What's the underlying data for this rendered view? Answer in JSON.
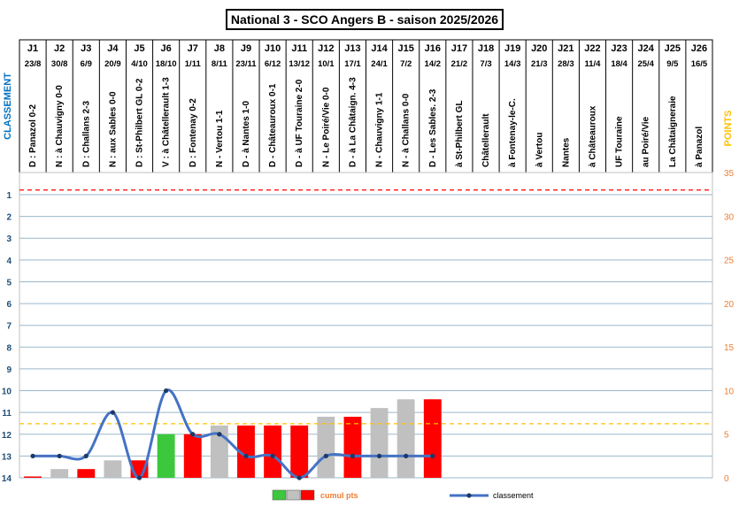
{
  "title": "National 3 - SCO Angers B - saison 2025/2026",
  "chart_data": {
    "type": "bar",
    "title": "National 3 - SCO Angers B - saison 2025/2026",
    "rounds": [
      "J1",
      "J2",
      "J3",
      "J4",
      "J5",
      "J6",
      "J7",
      "J8",
      "J9",
      "J10",
      "J11",
      "J12",
      "J13",
      "J14",
      "J15",
      "J16",
      "J17",
      "J18",
      "J19",
      "J20",
      "J21",
      "J22",
      "J23",
      "J24",
      "J25",
      "J26"
    ],
    "dates": [
      "23/8",
      "30/8",
      "6/9",
      "20/9",
      "4/10",
      "18/10",
      "1/11",
      "8/11",
      "23/11",
      "6/12",
      "13/12",
      "10/1",
      "17/1",
      "24/1",
      "7/2",
      "14/2",
      "21/2",
      "7/3",
      "14/3",
      "21/3",
      "28/3",
      "11/4",
      "18/4",
      "25/4",
      "9/5",
      "16/5"
    ],
    "matches": [
      "D : Panazol 0-2",
      "N : à Chauvigny 0-0",
      "D : Challans 2-3",
      "N : aux Sables 0-0",
      "D : St-Philbert GL 0-2",
      "V : à Châtellerault 1-3",
      "D : Fontenay 0-2",
      "N - Vertou 1-1",
      "D - à Nantes 1-0",
      "D - Châteauroux 0-1",
      "D - à UF Touraine 2-0",
      "N - Le Poiré/Vie 0-0",
      "D - à La Châtaign. 4-3",
      "N - Chauvigny 1-1",
      "N - à Challans 0-0",
      "D - Les Sables. 2-3",
      "à St-Philbert GL",
      "Châtellerault",
      "à Fontenay-le-C.",
      "à Vertou",
      "Nantes",
      "à Châteauroux",
      "UF Touraine",
      "au Poiré/Vie",
      "La Châtaigneraie",
      "à Panazol"
    ],
    "left_axis": {
      "label": "CLASSEMENT",
      "ticks": [
        "1",
        "2",
        "3",
        "4",
        "5",
        "6",
        "7",
        "8",
        "9",
        "10",
        "11",
        "12",
        "13",
        "14"
      ],
      "range": [
        14,
        1
      ]
    },
    "right_axis": {
      "label": "POINTS",
      "ticks": [
        "0",
        "5",
        "10",
        "15",
        "20",
        "25",
        "30",
        "35"
      ],
      "range": [
        0,
        35
      ]
    },
    "cumul_points": [
      0,
      1,
      1,
      2,
      2,
      5,
      5,
      6,
      6,
      6,
      6,
      7,
      7,
      8,
      9,
      9
    ],
    "bar_result": [
      "D",
      "N",
      "D",
      "N",
      "D",
      "V",
      "D",
      "N",
      "D",
      "D",
      "D",
      "N",
      "D",
      "N",
      "N",
      "D"
    ],
    "classement": [
      13,
      13,
      13,
      11,
      14,
      10,
      12,
      12,
      13,
      13,
      14,
      13,
      13,
      13,
      13,
      13
    ],
    "result_colors": {
      "V": "#3cc83c",
      "N": "#c0c0c0",
      "D": "#ff0000"
    },
    "line_color": "#4472c4",
    "reference_lines": [
      {
        "axis": "points",
        "value": 33,
        "color": "#ff0000"
      },
      {
        "axis": "points",
        "value": 6.2,
        "color": "#ffc000"
      }
    ],
    "legend": {
      "bars_label": "cumul pts",
      "line_label": "classement",
      "placement": "bottom"
    },
    "grid": true
  }
}
